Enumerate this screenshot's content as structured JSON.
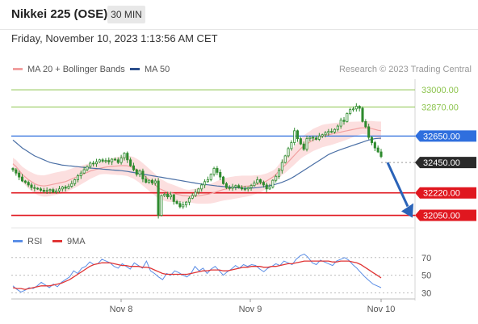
{
  "header": {
    "instrument": "Nikkei 225 (OSE)",
    "timeframe": "30 MIN"
  },
  "timestamp": "Friday, November 10, 2023 1:13:56 AM CET",
  "credit": "Research © 2023 Trading Central",
  "legend": {
    "ma20_bb": "MA 20 + Bollinger Bands",
    "ma50": "MA 50",
    "rsi": "RSI",
    "ma9": "9MA"
  },
  "colors": {
    "green": "#8dc44e",
    "blue": "#2f6fde",
    "red": "#e0171f",
    "dark": "#2a2a2a",
    "candle": "#2e8b2e",
    "band": "#fbd4d4",
    "ma20": "#f1a0a0",
    "ma50": "#4a6fa5",
    "rsi": "#5b8ee6",
    "ma9": "#e03535",
    "arrow": "#2a63b8"
  },
  "chart_data": [
    {
      "type": "candlestick",
      "title": "Nikkei 225 (OSE)",
      "ylim": [
        31980,
        33080
      ],
      "x_ticks": [
        "Nov 8",
        "Nov 9",
        "Nov 10"
      ],
      "levels": [
        {
          "label": "33000.00",
          "value": 33000,
          "style": "resistance",
          "color": "#8dc44e"
        },
        {
          "label": "32870.00",
          "value": 32870,
          "style": "resistance",
          "color": "#8dc44e"
        },
        {
          "label": "32650.00",
          "value": 32650,
          "style": "pivot",
          "color": "#2f6fde"
        },
        {
          "label": "32450.00",
          "value": 32450,
          "style": "last",
          "color": "#2a2a2a"
        },
        {
          "label": "32220.00",
          "value": 32220,
          "style": "support",
          "color": "#e0171f"
        },
        {
          "label": "32050.00",
          "value": 32050,
          "style": "support",
          "color": "#e0171f"
        }
      ],
      "close": [
        32395,
        32370,
        32340,
        32310,
        32300,
        32280,
        32260,
        32255,
        32250,
        32240,
        32232,
        32238,
        32245,
        32225,
        32235,
        32250,
        32265,
        32255,
        32270,
        32290,
        32320,
        32350,
        32370,
        32395,
        32420,
        32445,
        32440,
        32455,
        32470,
        32460,
        32465,
        32455,
        32475,
        32470,
        32450,
        32485,
        32520,
        32470,
        32425,
        32395,
        32360,
        32385,
        32325,
        32300,
        32315,
        32295,
        32310,
        32050,
        32200,
        32210,
        32190,
        32205,
        32155,
        32140,
        32115,
        32130,
        32150,
        32180,
        32200,
        32225,
        32250,
        32280,
        32305,
        32320,
        32360,
        32405,
        32375,
        32340,
        32290,
        32260,
        32255,
        32265,
        32275,
        32260,
        32250,
        32250,
        32260,
        32275,
        32295,
        32320,
        32300,
        32280,
        32250,
        32265,
        32315,
        32345,
        32390,
        32450,
        32500,
        32555,
        32600,
        32690,
        32630,
        32590,
        32550,
        32630,
        32640,
        32635,
        32625,
        32650,
        32660,
        32675,
        32685,
        32680,
        32700,
        32725,
        32770,
        32760,
        32820,
        32850,
        32855,
        32875,
        32860,
        32760,
        32720,
        32640,
        32600,
        32560,
        32530,
        32495
      ],
      "ma20": [
        32440,
        32420,
        32390,
        32360,
        32340,
        32320,
        32305,
        32290,
        32280,
        32275,
        32272,
        32275,
        32280,
        32285,
        32290,
        32295,
        32300,
        32305,
        32315,
        32325,
        32335,
        32345,
        32355,
        32365,
        32375,
        32385,
        32392,
        32398,
        32405,
        32410,
        32415,
        32418,
        32420,
        32422,
        32424,
        32426,
        32426,
        32425,
        32418,
        32410,
        32395,
        32380,
        32360,
        32340,
        32320,
        32300,
        32280,
        32255,
        32245,
        32235,
        32225,
        32220,
        32215,
        32210,
        32205,
        32200,
        32198,
        32196,
        32196,
        32196,
        32198,
        32202,
        32206,
        32210,
        32215,
        32222,
        32230,
        32238,
        32245,
        32250,
        32254,
        32258,
        32262,
        32265,
        32268,
        32270,
        32272,
        32275,
        32280,
        32285,
        32290,
        32300,
        32310,
        32325,
        32340,
        32360,
        32385,
        32410,
        32430,
        32455,
        32480,
        32505,
        32530,
        32555,
        32575,
        32590,
        32605,
        32620,
        32630,
        32640,
        32650,
        32655,
        32660,
        32665,
        32670,
        32675,
        32680,
        32685,
        32690,
        32695,
        32700,
        32705,
        32710,
        32712,
        32712,
        32710,
        32706,
        32700,
        32694,
        32690
      ],
      "ma50": [
        32620,
        32600,
        32580,
        32560,
        32545,
        32530,
        32515,
        32500,
        32490,
        32480,
        32470,
        32460,
        32450,
        32445,
        32440,
        32435,
        32430,
        32428,
        32425,
        32423,
        32420,
        32418,
        32415,
        32413,
        32410,
        32408,
        32406,
        32404,
        32402,
        32400,
        32398,
        32396,
        32394,
        32392,
        32390,
        32388,
        32385,
        32382,
        32378,
        32374,
        32370,
        32366,
        32362,
        32358,
        32354,
        32350,
        32346,
        32342,
        32338,
        32334,
        32330,
        32326,
        32322,
        32318,
        32314,
        32310,
        32306,
        32302,
        32298,
        32294,
        32290,
        32287,
        32284,
        32281,
        32278,
        32275,
        32272,
        32270,
        32268,
        32266,
        32264,
        32262,
        32260,
        32258,
        32256,
        32255,
        32255,
        32256,
        32258,
        32260,
        32263,
        32266,
        32270,
        32275,
        32280,
        32286,
        32293,
        32300,
        32310,
        32320,
        32332,
        32345,
        32360,
        32375,
        32390,
        32405,
        32420,
        32435,
        32450,
        32465,
        32480,
        32495,
        32510,
        32520,
        32530,
        32540,
        32548,
        32556,
        32564,
        32572,
        32580,
        32588,
        32596,
        32604,
        32612,
        32620,
        32625,
        32630,
        32632,
        32634
      ],
      "forecast": {
        "from": 32450,
        "to": 32050
      }
    },
    {
      "type": "line",
      "title": "RSI",
      "ylim": [
        25,
        78
      ],
      "y_ticks": [
        70,
        50,
        30
      ],
      "series": [
        {
          "name": "RSI",
          "values": [
            38,
            34,
            31,
            33,
            36,
            35,
            38,
            42,
            39,
            36,
            40,
            37,
            42,
            45,
            48,
            55,
            52,
            58,
            60,
            65,
            62,
            63,
            68,
            66,
            64,
            60,
            58,
            63,
            60,
            57,
            64,
            61,
            58,
            66,
            55,
            52,
            48,
            45,
            52,
            50,
            55,
            53,
            50,
            48,
            52,
            60,
            55,
            58,
            52,
            57,
            60,
            55,
            50,
            54,
            57,
            61,
            58,
            62,
            60,
            62,
            61,
            57,
            54,
            58,
            60,
            63,
            61,
            66,
            64,
            62,
            68,
            72,
            74,
            70,
            64,
            62,
            67,
            65,
            63,
            61,
            66,
            68,
            70,
            67,
            62,
            58,
            53,
            48,
            44,
            40,
            38,
            36
          ]
        },
        {
          "name": "9MA",
          "values": [
            36,
            35,
            35,
            34,
            35,
            36,
            37,
            38,
            38,
            38,
            39,
            40,
            41,
            43,
            45,
            48,
            51,
            54,
            57,
            60,
            62,
            63,
            64,
            64,
            64,
            63,
            62,
            61,
            61,
            60,
            60,
            60,
            59,
            59,
            58,
            56,
            54,
            52,
            51,
            51,
            51,
            51,
            51,
            51,
            52,
            53,
            54,
            55,
            55,
            56,
            56,
            56,
            55,
            55,
            56,
            57,
            58,
            59,
            59,
            60,
            60,
            60,
            59,
            59,
            60,
            60,
            61,
            62,
            63,
            63,
            64,
            65,
            66,
            66,
            66,
            66,
            66,
            66,
            66,
            65,
            65,
            66,
            66,
            66,
            65,
            64,
            62,
            59,
            56,
            53,
            50,
            47
          ]
        }
      ]
    }
  ]
}
